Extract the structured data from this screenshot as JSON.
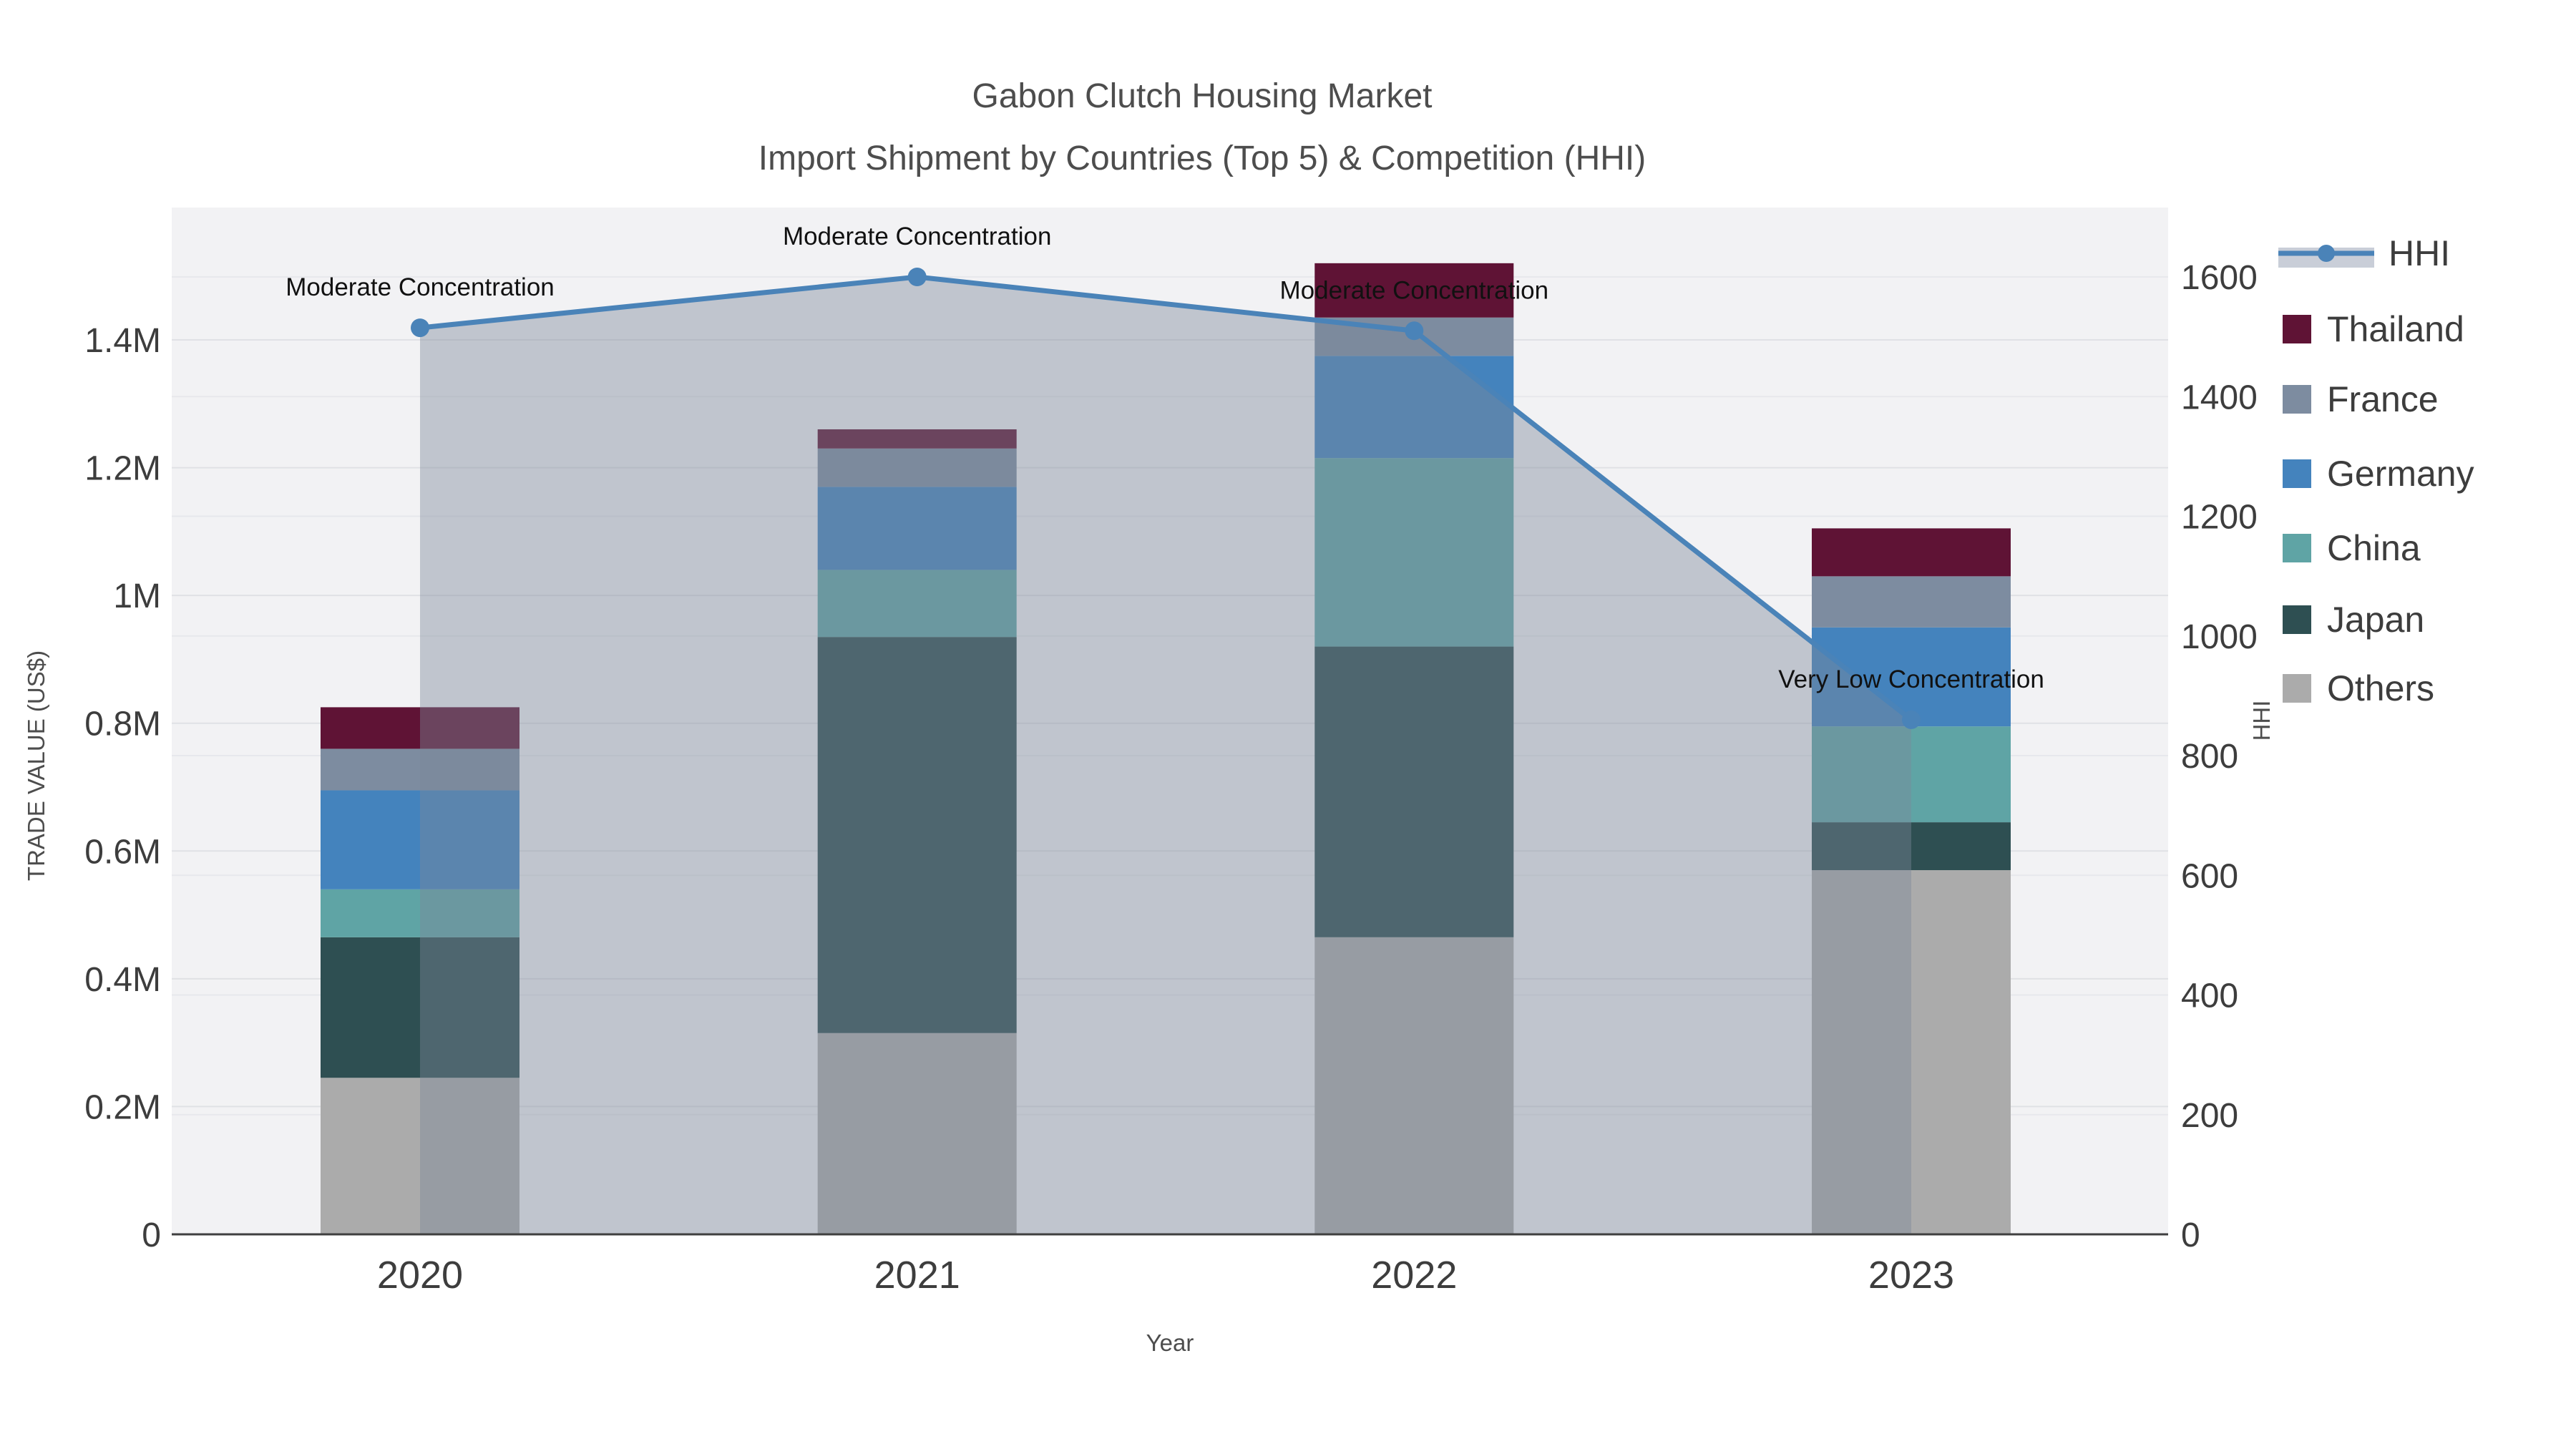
{
  "title": {
    "line1": "Gabon Clutch Housing Market",
    "line2": "Import Shipment by Countries (Top 5) & Competition (HHI)"
  },
  "chart_data": {
    "type": "bar",
    "subtype": "stacked-bars-with-secondary-axis-line",
    "title": "Gabon Clutch Housing Market — Import Shipment by Countries (Top 5) & Competition (HHI)",
    "categories": [
      "2020",
      "2021",
      "2022",
      "2023"
    ],
    "value_unit": "US$ millions",
    "series": [
      {
        "name": "Others",
        "color": "#ababab",
        "values": [
          0.245,
          0.315,
          0.465,
          0.57
        ]
      },
      {
        "name": "Japan",
        "color": "#2e4f52",
        "values": [
          0.22,
          0.62,
          0.455,
          0.075
        ]
      },
      {
        "name": "China",
        "color": "#5fa4a5",
        "values": [
          0.075,
          0.105,
          0.295,
          0.15
        ]
      },
      {
        "name": "Germany",
        "color": "#4483bd",
        "values": [
          0.155,
          0.13,
          0.16,
          0.155
        ]
      },
      {
        "name": "France",
        "color": "#7d8ca0",
        "values": [
          0.065,
          0.06,
          0.06,
          0.08
        ]
      },
      {
        "name": "Thailand",
        "color": "#5f1335",
        "values": [
          0.065,
          0.03,
          0.085,
          0.075
        ]
      }
    ],
    "bar_totals": [
      0.825,
      1.26,
      1.52,
      1.105
    ],
    "line_series": {
      "name": "HHI",
      "axis": "right",
      "color": "#4a83b8",
      "area_fill": "rgba(125,135,152,0.42)",
      "values": [
        1515,
        1600,
        1510,
        860
      ]
    },
    "annotations": [
      {
        "category": "2020",
        "text": "Moderate Concentration"
      },
      {
        "category": "2021",
        "text": "Moderate Concentration"
      },
      {
        "category": "2022",
        "text": "Moderate Concentration"
      },
      {
        "category": "2023",
        "text": "Very Low Concentration"
      }
    ],
    "x_axis": {
      "title": "Year",
      "ticks": [
        "2020",
        "2021",
        "2022",
        "2023"
      ]
    },
    "y_left": {
      "title": "TRADE VALUE (US$)",
      "ticks": [
        "0",
        "0.2M",
        "0.4M",
        "0.6M",
        "0.8M",
        "1M",
        "1.2M",
        "1.4M"
      ],
      "tick_values": [
        0,
        0.2,
        0.4,
        0.6,
        0.8,
        1.0,
        1.2,
        1.4
      ]
    },
    "y_right": {
      "title": "HHI",
      "ticks": [
        "0",
        "200",
        "400",
        "600",
        "800",
        "1000",
        "1200",
        "1400",
        "1600"
      ],
      "tick_values": [
        0,
        200,
        400,
        600,
        800,
        1000,
        1200,
        1400,
        1600
      ]
    },
    "legend": {
      "position": "top-right",
      "items": [
        {
          "label": "HHI",
          "kind": "line",
          "color": "#4a83b8",
          "band": "#c9ced8"
        },
        {
          "label": "Thailand",
          "kind": "square",
          "color": "#5f1335"
        },
        {
          "label": "France",
          "kind": "square",
          "color": "#7d8ca0"
        },
        {
          "label": "Germany",
          "kind": "square",
          "color": "#4483bd"
        },
        {
          "label": "China",
          "kind": "square",
          "color": "#5fa4a5"
        },
        {
          "label": "Japan",
          "kind": "square",
          "color": "#2e4f52"
        },
        {
          "label": "Others",
          "kind": "square",
          "color": "#ababab"
        }
      ]
    },
    "style": {
      "plot_bg": "#f2f2f4",
      "grid_left_color": "#e0e1e5",
      "grid_right_color": "#e7e8ec",
      "baseline_color": "#3f3f3f"
    }
  }
}
